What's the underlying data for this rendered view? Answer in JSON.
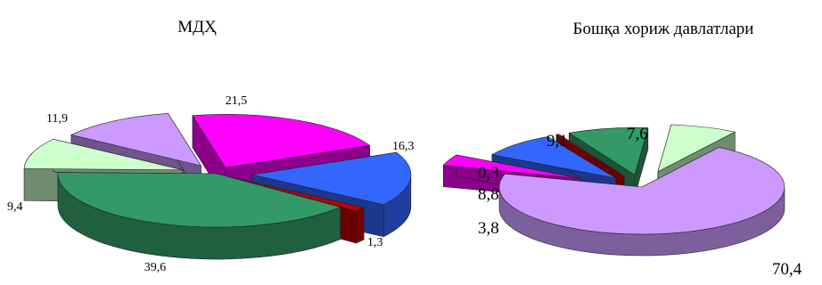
{
  "chart_data": [
    {
      "type": "pie",
      "title": "МДҲ",
      "slices": [
        {
          "value": 21.5,
          "label": "21,5",
          "color": "#ff00ff"
        },
        {
          "value": 16.3,
          "label": "16,3",
          "color": "#3366ff"
        },
        {
          "value": 1.3,
          "label": "1,3",
          "color": "#c00000"
        },
        {
          "value": 39.6,
          "label": "39,6",
          "color": "#339966"
        },
        {
          "value": 9.4,
          "label": "9,4",
          "color": "#ccffcc"
        },
        {
          "value": 11.9,
          "label": "11,9",
          "color": "#cc99ff"
        }
      ]
    },
    {
      "type": "pie",
      "title": "Бошқа хориж давлатлари",
      "slices": [
        {
          "value": 70.4,
          "label": "70,4",
          "color": "#cc99ff"
        },
        {
          "value": 3.8,
          "label": "3,8",
          "color": "#ff00ff"
        },
        {
          "value": 8.8,
          "label": "8,8",
          "color": "#3366ff"
        },
        {
          "value": 0.3,
          "label": "0,3",
          "color": "#c00000"
        },
        {
          "value": 9.1,
          "label": "9,1",
          "color": "#339966"
        },
        {
          "value": 7.6,
          "label": "7,6",
          "color": "#ccffcc"
        }
      ]
    }
  ]
}
